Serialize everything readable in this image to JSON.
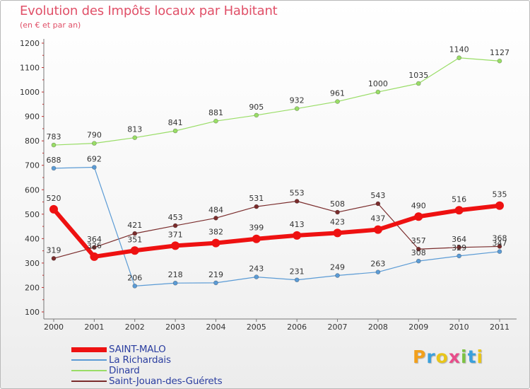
{
  "header": {
    "title": "Evolution des Impôts locaux par Habitant",
    "subtitle": "(en € et par an)"
  },
  "chart_data": {
    "type": "line",
    "title": "Evolution des Impôts locaux par Habitant",
    "subtitle": "(en € et par an)",
    "xlabel": "",
    "ylabel": "",
    "ylim": [
      100,
      1200
    ],
    "yticks": [
      "100",
      "200",
      "300",
      "400",
      "500",
      "600",
      "700",
      "800",
      "900",
      "1000",
      "1100",
      "1200"
    ],
    "categories": [
      "2000",
      "2001",
      "2002",
      "2003",
      "2004",
      "2005",
      "2006",
      "2007",
      "2008",
      "2009",
      "2010",
      "2011"
    ],
    "series": [
      {
        "name": "SAINT-MALO",
        "color": "#ee1111",
        "values": [
          520,
          326,
          351,
          371,
          382,
          399,
          413,
          423,
          437,
          490,
          516,
          535
        ],
        "labels": [
          "520",
          "326",
          "351",
          "371",
          "382",
          "399",
          "413",
          "423",
          "437",
          "490",
          "516",
          "535"
        ]
      },
      {
        "name": "La Richardais",
        "color": "#5b9bd5",
        "values": [
          688,
          692,
          206,
          218,
          219,
          243,
          231,
          249,
          263,
          308,
          329,
          347
        ],
        "labels": [
          "688",
          "692",
          "206",
          "218",
          "219",
          "243",
          "231",
          "249",
          "263",
          "308",
          "329",
          "347"
        ]
      },
      {
        "name": "Dinard",
        "color": "#99dd66",
        "values": [
          783,
          790,
          813,
          841,
          881,
          905,
          932,
          961,
          1000,
          1035,
          1140,
          1127
        ],
        "labels": [
          "783",
          "790",
          "813",
          "841",
          "881",
          "905",
          "932",
          "961",
          "1000",
          "1035",
          "1140",
          "1127"
        ]
      },
      {
        "name": "Saint-Jouan-des-Guérets",
        "color": "#7a2c2c",
        "values": [
          319,
          364,
          421,
          453,
          484,
          531,
          553,
          508,
          543,
          357,
          364,
          368
        ],
        "labels": [
          "319",
          "364",
          "421",
          "453",
          "484",
          "531",
          "553",
          "508",
          "543",
          "357",
          "364",
          "368"
        ]
      }
    ],
    "grid": false,
    "legend": "bottom-left"
  },
  "logo": {
    "letters": [
      "P",
      "r",
      "o",
      "x",
      "i",
      "t",
      "i"
    ],
    "colors": [
      "#f2a01c",
      "#3aa0dc",
      "#e8c51a",
      "#e84c8a",
      "#7cc242",
      "#3aa0dc",
      "#e8c51a"
    ]
  }
}
